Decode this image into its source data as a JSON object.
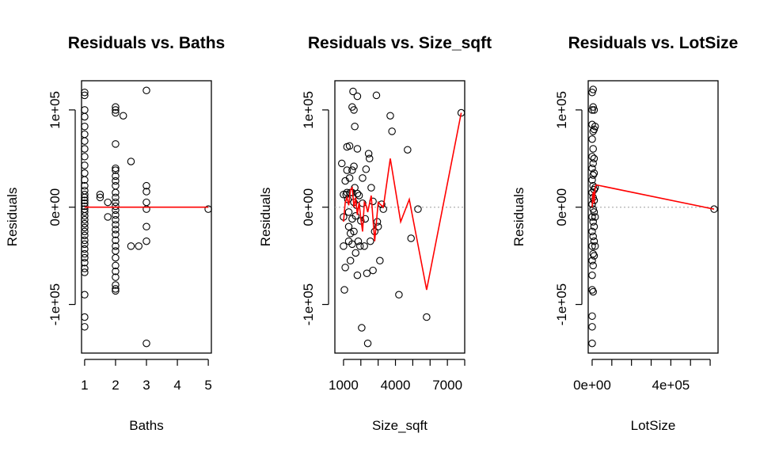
{
  "chart_data": [
    {
      "type": "scatter",
      "title": "Residuals vs. Baths",
      "xlabel": "Baths",
      "ylabel": "Residuals",
      "xlim": [
        0.9,
        5.1
      ],
      "ylim": [
        -150000,
        130000
      ],
      "x_ticks": [
        1,
        2,
        3,
        4,
        5
      ],
      "x_tick_labels": [
        "1",
        "2",
        "3",
        "4",
        "5"
      ],
      "y_ticks": [
        -100000,
        0,
        100000
      ],
      "y_tick_labels": [
        "-1e+05",
        "0e+00",
        "1e+05"
      ],
      "reference_line": 0,
      "points": [
        [
          1,
          118000
        ],
        [
          1,
          115000
        ],
        [
          1,
          100000
        ],
        [
          1,
          93000
        ],
        [
          1,
          83000
        ],
        [
          1,
          75000
        ],
        [
          1,
          68000
        ],
        [
          1,
          60000
        ],
        [
          1,
          52000
        ],
        [
          1,
          43000
        ],
        [
          1,
          35000
        ],
        [
          1,
          28000
        ],
        [
          1,
          22000
        ],
        [
          1,
          17000
        ],
        [
          1,
          13000
        ],
        [
          1,
          10000
        ],
        [
          1,
          7000
        ],
        [
          1,
          4000
        ],
        [
          1,
          1000
        ],
        [
          1,
          -2000
        ],
        [
          1,
          -5000
        ],
        [
          1,
          -9000
        ],
        [
          1,
          -13000
        ],
        [
          1,
          -17000
        ],
        [
          1,
          -21000
        ],
        [
          1,
          -25000
        ],
        [
          1,
          -29000
        ],
        [
          1,
          -34000
        ],
        [
          1,
          -38000
        ],
        [
          1,
          -43000
        ],
        [
          1,
          -48000
        ],
        [
          1,
          -52000
        ],
        [
          1,
          -57000
        ],
        [
          1,
          -63000
        ],
        [
          1,
          -67000
        ],
        [
          1,
          -90000
        ],
        [
          1,
          -113000
        ],
        [
          1,
          -123000
        ],
        [
          1.5,
          13000
        ],
        [
          1.5,
          10000
        ],
        [
          1.75,
          5000
        ],
        [
          1.75,
          -10000
        ],
        [
          2,
          103000
        ],
        [
          2,
          100000
        ],
        [
          2,
          97000
        ],
        [
          2,
          65000
        ],
        [
          2,
          40000
        ],
        [
          2,
          38000
        ],
        [
          2,
          32000
        ],
        [
          2,
          27000
        ],
        [
          2,
          22000
        ],
        [
          2,
          15000
        ],
        [
          2,
          10000
        ],
        [
          2,
          5000
        ],
        [
          2,
          1000
        ],
        [
          2,
          -3000
        ],
        [
          2,
          -8000
        ],
        [
          2,
          -13000
        ],
        [
          2,
          -18000
        ],
        [
          2,
          -23000
        ],
        [
          2,
          -28000
        ],
        [
          2,
          -34000
        ],
        [
          2,
          -40000
        ],
        [
          2,
          -45000
        ],
        [
          2,
          -52000
        ],
        [
          2,
          -60000
        ],
        [
          2,
          -66000
        ],
        [
          2,
          -72000
        ],
        [
          2,
          -80000
        ],
        [
          2,
          -84000
        ],
        [
          2,
          -86000
        ],
        [
          2.25,
          94000
        ],
        [
          2.5,
          47000
        ],
        [
          2.5,
          -40000
        ],
        [
          2.75,
          -40000
        ],
        [
          3,
          120000
        ],
        [
          3,
          22000
        ],
        [
          3,
          16000
        ],
        [
          3,
          5000
        ],
        [
          3,
          -2000
        ],
        [
          3,
          -20000
        ],
        [
          3,
          -35000
        ],
        [
          3,
          -140000
        ],
        [
          5,
          -2000
        ]
      ],
      "smooth_line": [
        [
          1,
          0
        ],
        [
          2,
          0
        ],
        [
          3,
          0
        ],
        [
          5,
          0
        ]
      ]
    },
    {
      "type": "scatter",
      "title": "Residuals vs. Size_sqft",
      "xlabel": "Size_sqft",
      "ylabel": "Residuals",
      "xlim": [
        500,
        8000
      ],
      "ylim": [
        -150000,
        130000
      ],
      "x_ticks": [
        1000,
        2000,
        3000,
        4000,
        5000,
        6000,
        7000,
        8000
      ],
      "x_tick_labels": [
        "1000",
        "",
        "",
        "4000",
        "",
        "",
        "7000",
        ""
      ],
      "y_ticks": [
        -100000,
        0,
        100000
      ],
      "y_tick_labels": [
        "-1e+05",
        "0e+00",
        "1e+05"
      ],
      "reference_line": 0,
      "points": [
        [
          900,
          45000
        ],
        [
          1000,
          13000
        ],
        [
          1000,
          -10000
        ],
        [
          1000,
          -40000
        ],
        [
          1050,
          -85000
        ],
        [
          1100,
          -62000
        ],
        [
          1100,
          27000
        ],
        [
          1150,
          13000
        ],
        [
          1200,
          62000
        ],
        [
          1200,
          38000
        ],
        [
          1200,
          15000
        ],
        [
          1250,
          8000
        ],
        [
          1300,
          -5000
        ],
        [
          1300,
          -20000
        ],
        [
          1300,
          -35000
        ],
        [
          1350,
          63000
        ],
        [
          1350,
          30000
        ],
        [
          1400,
          15000
        ],
        [
          1400,
          -27000
        ],
        [
          1400,
          -55000
        ],
        [
          1500,
          103000
        ],
        [
          1500,
          38000
        ],
        [
          1500,
          15000
        ],
        [
          1500,
          -12000
        ],
        [
          1500,
          -38000
        ],
        [
          1550,
          119000
        ],
        [
          1600,
          100000
        ],
        [
          1600,
          42000
        ],
        [
          1600,
          5000
        ],
        [
          1600,
          -25000
        ],
        [
          1650,
          83000
        ],
        [
          1650,
          20000
        ],
        [
          1700,
          -9000
        ],
        [
          1700,
          -47000
        ],
        [
          1750,
          2000
        ],
        [
          1800,
          114000
        ],
        [
          1800,
          60000
        ],
        [
          1800,
          14000
        ],
        [
          1800,
          -70000
        ],
        [
          1850,
          -35000
        ],
        [
          1900,
          12000
        ],
        [
          1950,
          -40000
        ],
        [
          2000,
          -14000
        ],
        [
          2050,
          -124000
        ],
        [
          2100,
          30000
        ],
        [
          2100,
          4000
        ],
        [
          2200,
          -40000
        ],
        [
          2250,
          -12000
        ],
        [
          2300,
          39000
        ],
        [
          2350,
          -68000
        ],
        [
          2400,
          -140000
        ],
        [
          2450,
          55000
        ],
        [
          2500,
          50000
        ],
        [
          2550,
          -35000
        ],
        [
          2600,
          20000
        ],
        [
          2700,
          -65000
        ],
        [
          2700,
          6000
        ],
        [
          2800,
          -25000
        ],
        [
          2900,
          115000
        ],
        [
          2950,
          -15000
        ],
        [
          3000,
          -20000
        ],
        [
          3100,
          -55000
        ],
        [
          3200,
          3000
        ],
        [
          3300,
          -2000
        ],
        [
          3700,
          94000
        ],
        [
          3800,
          78000
        ],
        [
          4200,
          -90000
        ],
        [
          4700,
          59000
        ],
        [
          4900,
          -32000
        ],
        [
          5300,
          -2000
        ],
        [
          5800,
          -113000
        ],
        [
          7800,
          97000
        ]
      ],
      "smooth_line": [
        [
          1000,
          -15000
        ],
        [
          1100,
          5000
        ],
        [
          1200,
          10000
        ],
        [
          1300,
          2000
        ],
        [
          1400,
          18000
        ],
        [
          1500,
          20000
        ],
        [
          1600,
          0
        ],
        [
          1700,
          10000
        ],
        [
          1800,
          -8000
        ],
        [
          1900,
          5000
        ],
        [
          2000,
          -12000
        ],
        [
          2100,
          -25000
        ],
        [
          2200,
          5000
        ],
        [
          2300,
          2000
        ],
        [
          2400,
          -5000
        ],
        [
          2600,
          12000
        ],
        [
          2800,
          -35000
        ],
        [
          3000,
          5000
        ],
        [
          3300,
          0
        ],
        [
          3700,
          50000
        ],
        [
          4300,
          -15000
        ],
        [
          4800,
          8000
        ],
        [
          5800,
          -85000
        ],
        [
          7800,
          97000
        ]
      ]
    },
    {
      "type": "scatter",
      "title": "Residuals vs. LotSize",
      "xlabel": "LotSize",
      "ylabel": "Residuals",
      "xlim": [
        -20000,
        640000
      ],
      "ylim": [
        -150000,
        130000
      ],
      "x_ticks": [
        0,
        100000,
        200000,
        300000,
        400000,
        500000,
        600000
      ],
      "x_tick_labels": [
        "0e+00",
        "",
        "",
        "",
        "4e+05",
        "",
        ""
      ],
      "y_ticks": [
        -100000,
        0,
        100000
      ],
      "y_tick_labels": [
        "-1e+05",
        "0e+00",
        "1e+05"
      ],
      "reference_line": 0,
      "points": [
        [
          0,
          118000
        ],
        [
          0,
          100000
        ],
        [
          0,
          85000
        ],
        [
          0,
          70000
        ],
        [
          0,
          52000
        ],
        [
          0,
          40000
        ],
        [
          0,
          28000
        ],
        [
          0,
          15000
        ],
        [
          0,
          3000
        ],
        [
          0,
          -10000
        ],
        [
          0,
          -25000
        ],
        [
          0,
          -40000
        ],
        [
          0,
          -55000
        ],
        [
          0,
          -70000
        ],
        [
          0,
          -85000
        ],
        [
          0,
          -112000
        ],
        [
          0,
          -123000
        ],
        [
          0,
          -140000
        ],
        [
          5000,
          121000
        ],
        [
          5000,
          103000
        ],
        [
          5000,
          78000
        ],
        [
          5000,
          60000
        ],
        [
          5000,
          45000
        ],
        [
          5000,
          33000
        ],
        [
          5000,
          22000
        ],
        [
          5000,
          10000
        ],
        [
          5000,
          -2000
        ],
        [
          5000,
          -15000
        ],
        [
          5000,
          -30000
        ],
        [
          5000,
          -48000
        ],
        [
          5000,
          -60000
        ],
        [
          5000,
          -87000
        ],
        [
          10000,
          100000
        ],
        [
          10000,
          80000
        ],
        [
          10000,
          50000
        ],
        [
          10000,
          35000
        ],
        [
          10000,
          18000
        ],
        [
          10000,
          7000
        ],
        [
          10000,
          -5000
        ],
        [
          10000,
          -20000
        ],
        [
          10000,
          -35000
        ],
        [
          10000,
          -50000
        ],
        [
          15000,
          83000
        ],
        [
          15000,
          20000
        ],
        [
          15000,
          -10000
        ],
        [
          15000,
          -40000
        ],
        [
          620000,
          -2000
        ]
      ],
      "smooth_line": [
        [
          0,
          0
        ],
        [
          3000,
          12000
        ],
        [
          6000,
          16000
        ],
        [
          10000,
          4000
        ],
        [
          15000,
          20000
        ],
        [
          20000,
          23000
        ],
        [
          620000,
          -2000
        ]
      ]
    }
  ]
}
